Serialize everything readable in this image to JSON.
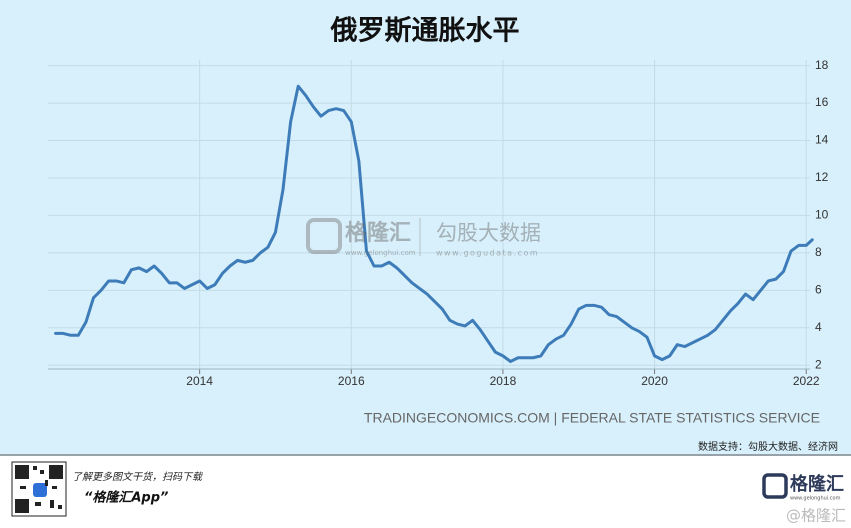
{
  "chart_data": {
    "type": "line",
    "title": "俄罗斯通胀水平",
    "x": [
      2012.1,
      2012.2,
      2012.3,
      2012.4,
      2012.5,
      2012.6,
      2012.7,
      2012.8,
      2012.9,
      2013.0,
      2013.1,
      2013.2,
      2013.3,
      2013.4,
      2013.5,
      2013.6,
      2013.7,
      2013.8,
      2013.9,
      2014.0,
      2014.1,
      2014.2,
      2014.3,
      2014.4,
      2014.5,
      2014.6,
      2014.7,
      2014.8,
      2014.9,
      2015.0,
      2015.1,
      2015.2,
      2015.3,
      2015.4,
      2015.5,
      2015.6,
      2015.7,
      2015.8,
      2015.9,
      2016.0,
      2016.1,
      2016.2,
      2016.3,
      2016.4,
      2016.5,
      2016.6,
      2016.7,
      2016.8,
      2016.9,
      2017.0,
      2017.1,
      2017.2,
      2017.3,
      2017.4,
      2017.5,
      2017.6,
      2017.7,
      2017.8,
      2017.9,
      2018.0,
      2018.1,
      2018.2,
      2018.3,
      2018.4,
      2018.5,
      2018.6,
      2018.7,
      2018.8,
      2018.9,
      2019.0,
      2019.1,
      2019.2,
      2019.3,
      2019.4,
      2019.5,
      2019.6,
      2019.7,
      2019.8,
      2019.9,
      2020.0,
      2020.1,
      2020.2,
      2020.3,
      2020.4,
      2020.5,
      2020.6,
      2020.7,
      2020.8,
      2020.9,
      2021.0,
      2021.1,
      2021.2,
      2021.3,
      2021.4,
      2021.5,
      2021.6,
      2021.7,
      2021.8,
      2021.9,
      2022.0,
      2022.08
    ],
    "series": [
      {
        "color": "#3d7cb9",
        "values": [
          3.7,
          3.7,
          3.6,
          3.6,
          4.3,
          5.6,
          6.0,
          6.5,
          6.5,
          6.4,
          7.1,
          7.2,
          7.0,
          7.3,
          6.9,
          6.4,
          6.4,
          6.1,
          6.3,
          6.5,
          6.1,
          6.3,
          6.9,
          7.3,
          7.6,
          7.5,
          7.6,
          8.0,
          8.3,
          9.1,
          11.4,
          15.0,
          16.9,
          16.4,
          15.8,
          15.3,
          15.6,
          15.7,
          15.6,
          15.0,
          12.9,
          8.1,
          7.3,
          7.3,
          7.5,
          7.2,
          6.8,
          6.4,
          6.1,
          5.8,
          5.4,
          5.0,
          4.4,
          4.2,
          4.1,
          4.4,
          3.9,
          3.3,
          2.7,
          2.5,
          2.2,
          2.4,
          2.4,
          2.4,
          2.5,
          3.1,
          3.4,
          3.6,
          4.2,
          5.0,
          5.2,
          5.2,
          5.1,
          4.7,
          4.6,
          4.3,
          4.0,
          3.8,
          3.5,
          2.5,
          2.3,
          2.5,
          3.1,
          3.0,
          3.2,
          3.4,
          3.6,
          3.9,
          4.4,
          4.9,
          5.3,
          5.8,
          5.5,
          6.0,
          6.5,
          6.6,
          7.0,
          8.1,
          8.4,
          8.4,
          8.7
        ]
      }
    ],
    "xlim": [
      2012.0,
      2022.05
    ],
    "xticks": [
      2014,
      2016,
      2018,
      2020,
      2022
    ],
    "ylim": [
      1.8,
      18.3
    ],
    "yticks": [
      2,
      4,
      6,
      8,
      10,
      12,
      14,
      16,
      18
    ],
    "grid": true,
    "source": "TRADINGECONOMICS.COM | FEDERAL STATE STATISTICS SERVICE",
    "data_support": "数据支持：勾股大数据、经济网"
  },
  "watermark": {
    "brand": "格隆汇",
    "brand_url": "www.gelonghui.com",
    "partner": "勾股大数据",
    "partner_url": "www.gogudata.com"
  },
  "footer": {
    "promo": "了解更多图文干货，扫码下载",
    "app": "“格隆汇App”",
    "logo": "格隆汇",
    "logo_url": "www.gelonghui.com",
    "handle": "@格隆汇"
  }
}
